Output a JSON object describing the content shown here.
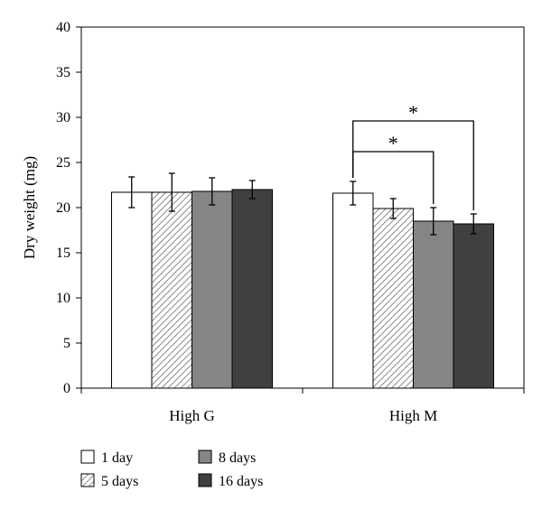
{
  "chart_data": {
    "type": "bar",
    "title": "",
    "xlabel": "",
    "ylabel": "Dry weight (mg)",
    "ylim": [
      0,
      40
    ],
    "yticks": [
      0,
      5,
      10,
      15,
      20,
      25,
      30,
      35,
      40
    ],
    "categories": [
      "High G",
      "High M"
    ],
    "series": [
      {
        "name": "1 day",
        "values": [
          21.7,
          21.6
        ],
        "errors": [
          1.7,
          1.3
        ],
        "fill": "#ffffff",
        "pattern": "none"
      },
      {
        "name": "5 days",
        "values": [
          21.7,
          19.9
        ],
        "errors": [
          2.1,
          1.1
        ],
        "fill": "#ffffff",
        "pattern": "hatch"
      },
      {
        "name": "8 days",
        "values": [
          21.8,
          18.5
        ],
        "errors": [
          1.5,
          1.5
        ],
        "fill": "#858585",
        "pattern": "none"
      },
      {
        "name": "16 days",
        "values": [
          22.0,
          18.2
        ],
        "errors": [
          1.0,
          1.1
        ],
        "fill": "#404040",
        "pattern": "none"
      }
    ],
    "significance": [
      {
        "category": "High M",
        "from": "1 day",
        "to": "8 days",
        "label": "*"
      },
      {
        "category": "High M",
        "from": "1 day",
        "to": "16 days",
        "label": "*"
      }
    ],
    "legend": {
      "placement": "bottom-left",
      "columns": 2
    },
    "grid": false
  }
}
